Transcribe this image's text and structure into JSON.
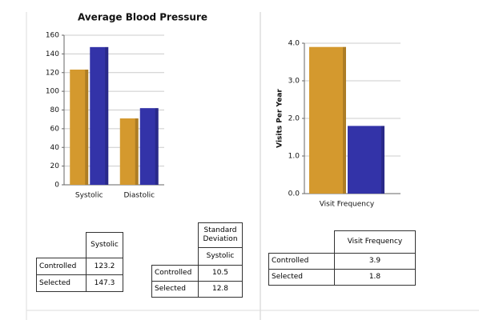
{
  "chart_data": [
    {
      "type": "bar",
      "title": "Average Blood Pressure",
      "categories": [
        "Systolic",
        "Diastolic"
      ],
      "series": [
        {
          "color": "#d4992e",
          "values": [
            123.2,
            71
          ]
        },
        {
          "color": "#3333a8",
          "values": [
            147.3,
            82
          ]
        }
      ],
      "ylim": [
        0,
        160
      ],
      "yticks": [
        0,
        20,
        40,
        60,
        80,
        100,
        120,
        140,
        160
      ],
      "grid": true
    },
    {
      "type": "bar",
      "y_label": "Visits Per Year",
      "categories": [
        "Visit Frequency"
      ],
      "series": [
        {
          "color": "#d4992e",
          "values": [
            3.9
          ]
        },
        {
          "color": "#3333a8",
          "values": [
            1.8
          ]
        }
      ],
      "ylim": [
        0,
        4
      ],
      "yticks": [
        {
          "value": 0,
          "label": "0.0"
        },
        {
          "value": 1,
          "label": "1.0"
        },
        {
          "value": 2,
          "label": "2.0"
        },
        {
          "value": 3,
          "label": "3.0"
        },
        {
          "value": 4,
          "label": "4.0"
        }
      ],
      "grid": true
    }
  ],
  "tables": [
    {
      "header": [
        [
          "Systolic"
        ]
      ],
      "rows": [
        [
          "Controlled",
          "123.2"
        ],
        [
          "Selected",
          "147.3"
        ]
      ]
    },
    {
      "header": [
        [
          "Standard Deviation"
        ],
        [
          "Systolic"
        ]
      ],
      "rows": [
        [
          "Controlled",
          "10.5"
        ],
        [
          "Selected",
          "12.8"
        ]
      ]
    },
    {
      "header": [
        [
          "Visit Frequency"
        ]
      ],
      "rows": [
        [
          "Controlled",
          "3.9"
        ],
        [
          "Selected",
          "1.8"
        ]
      ]
    }
  ]
}
